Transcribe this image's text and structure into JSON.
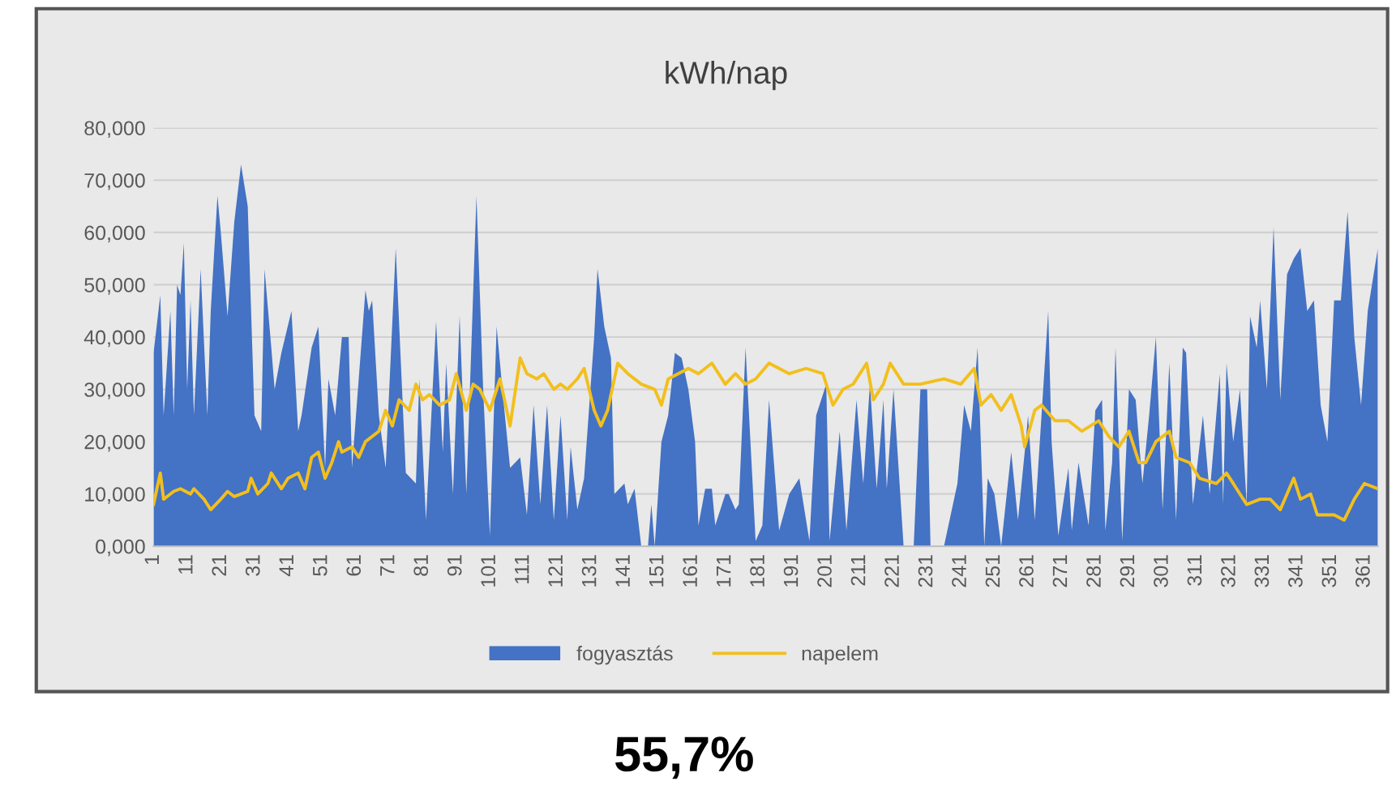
{
  "chart_data": {
    "type": "area",
    "title": "kWh/nap",
    "xlim": [
      1,
      365
    ],
    "xticks": [
      1,
      11,
      21,
      31,
      41,
      51,
      61,
      71,
      81,
      91,
      101,
      111,
      121,
      131,
      141,
      151,
      161,
      171,
      181,
      191,
      201,
      211,
      221,
      231,
      241,
      251,
      261,
      271,
      281,
      291,
      301,
      311,
      321,
      331,
      341,
      351,
      361
    ],
    "ylim": [
      0,
      80
    ],
    "yticks": [
      {
        "value": 0,
        "label": "0,000"
      },
      {
        "value": 10,
        "label": "10,000"
      },
      {
        "value": 20,
        "label": "20,000"
      },
      {
        "value": 30,
        "label": "30,000"
      },
      {
        "value": 40,
        "label": "40,000"
      },
      {
        "value": 50,
        "label": "50,000"
      },
      {
        "value": 60,
        "label": "60,000"
      },
      {
        "value": 70,
        "label": "70,000"
      },
      {
        "value": 80,
        "label": "80,000"
      }
    ],
    "grid": "y",
    "legend": "bottom",
    "annotations": [
      "55,7%"
    ],
    "series": [
      {
        "name": "fogyasztás",
        "color": "#4472c4",
        "x": [
          1,
          3,
          4,
          6,
          7,
          8,
          9,
          10,
          11,
          12,
          13,
          15,
          17,
          18,
          20,
          21,
          23,
          25,
          27,
          29,
          31,
          33,
          34,
          36,
          37,
          39,
          42,
          44,
          45,
          48,
          50,
          52,
          53,
          55,
          57,
          59,
          60,
          64,
          65,
          66,
          68,
          70,
          73,
          76,
          79,
          80,
          82,
          85,
          87,
          88,
          90,
          92,
          94,
          97,
          99,
          101,
          103,
          105,
          107,
          110,
          112,
          114,
          116,
          118,
          120,
          122,
          124,
          125,
          127,
          129,
          132,
          133,
          135,
          137,
          138,
          141,
          142,
          144,
          146,
          148,
          149,
          150,
          152,
          154,
          156,
          158,
          160,
          162,
          163,
          165,
          167,
          168,
          171,
          172,
          174,
          175,
          177,
          180,
          182,
          184,
          187,
          190,
          193,
          196,
          198,
          201,
          202,
          205,
          207,
          210,
          212,
          214,
          216,
          218,
          219,
          221,
          223,
          224,
          227,
          229,
          231,
          232,
          236,
          240,
          242,
          244,
          246,
          248,
          249,
          251,
          253,
          256,
          258,
          260,
          261,
          263,
          265,
          267,
          268,
          270,
          273,
          274,
          276,
          279,
          281,
          283,
          284,
          286,
          287,
          289,
          291,
          293,
          295,
          297,
          299,
          301,
          303,
          305,
          307,
          308,
          310,
          313,
          315,
          318,
          319,
          320,
          322,
          324,
          326,
          327,
          329,
          330,
          332,
          334,
          336,
          338,
          340,
          342,
          344,
          346,
          348,
          350,
          352,
          354,
          356,
          358,
          360,
          362,
          365
        ],
        "values": [
          37,
          48,
          25,
          45,
          25,
          50,
          48,
          58,
          30,
          47,
          25,
          53,
          25,
          45,
          67,
          60,
          44,
          62,
          73,
          65,
          25,
          22,
          53,
          38,
          30,
          37,
          45,
          22,
          25,
          38,
          42,
          15,
          32,
          25,
          40,
          40,
          15,
          49,
          45,
          47,
          25,
          15,
          57,
          14,
          12,
          32,
          5,
          43,
          18,
          35,
          10,
          44,
          10,
          67,
          30,
          2,
          42,
          28,
          15,
          17,
          6,
          27,
          8,
          27,
          5,
          25,
          5,
          19,
          7,
          13,
          40,
          53,
          42,
          36,
          10,
          12,
          8,
          11,
          0,
          0,
          8,
          0,
          20,
          25,
          37,
          36,
          30,
          20,
          4,
          11,
          11,
          4,
          10,
          10,
          7,
          8,
          38,
          1,
          4,
          28,
          3,
          10,
          13,
          1,
          25,
          31,
          1,
          22,
          3,
          28,
          12,
          31,
          11,
          28,
          11,
          30,
          10,
          0,
          0,
          30,
          30,
          0,
          0,
          12,
          27,
          22,
          38,
          0,
          13,
          10,
          0,
          18,
          5,
          18,
          25,
          5,
          25,
          45,
          20,
          2,
          15,
          3,
          16,
          4,
          26,
          28,
          3,
          16,
          38,
          1,
          30,
          28,
          12,
          25,
          40,
          7,
          35,
          5,
          38,
          37,
          8,
          25,
          10,
          33,
          8,
          35,
          20,
          30,
          8,
          44,
          38,
          47,
          30,
          61,
          28,
          52,
          55,
          57,
          45,
          47,
          27,
          20,
          47,
          47,
          64,
          40,
          27,
          45,
          57
        ]
      },
      {
        "name": "napelem",
        "type": "line",
        "color": "#f2bf1d",
        "x": [
          1,
          3,
          4,
          5,
          7,
          9,
          12,
          13,
          16,
          18,
          21,
          23,
          25,
          29,
          30,
          32,
          35,
          36,
          39,
          41,
          44,
          46,
          48,
          50,
          52,
          54,
          56,
          57,
          60,
          62,
          64,
          68,
          70,
          72,
          74,
          77,
          79,
          81,
          83,
          86,
          89,
          91,
          94,
          96,
          98,
          101,
          104,
          107,
          110,
          112,
          115,
          117,
          120,
          122,
          124,
          127,
          129,
          132,
          134,
          136,
          139,
          142,
          146,
          150,
          152,
          154,
          157,
          160,
          163,
          167,
          171,
          174,
          177,
          180,
          184,
          187,
          190,
          195,
          200,
          203,
          206,
          209,
          213,
          215,
          218,
          220,
          224,
          229,
          236,
          241,
          245,
          247,
          250,
          253,
          256,
          259,
          260,
          263,
          265,
          269,
          273,
          277,
          282,
          285,
          288,
          291,
          294,
          296,
          299,
          303,
          305,
          309,
          312,
          317,
          320,
          323,
          326,
          330,
          333,
          336,
          340,
          342,
          345,
          347,
          352,
          355,
          358,
          361,
          365
        ],
        "values": [
          8,
          14,
          9,
          9.5,
          10.5,
          11,
          10,
          11,
          9,
          7,
          9,
          10.5,
          9.5,
          10.5,
          13,
          10,
          12,
          14,
          11,
          13,
          14,
          11,
          17,
          18,
          13,
          16,
          20,
          18,
          19,
          17,
          20,
          22,
          26,
          23,
          28,
          26,
          31,
          28,
          29,
          27,
          28,
          33,
          26,
          31,
          30,
          26,
          32,
          23,
          36,
          33,
          32,
          33,
          30,
          31,
          30,
          32,
          34,
          26,
          23,
          26,
          35,
          33,
          31,
          30,
          27,
          32,
          33,
          34,
          33,
          35,
          31,
          33,
          31,
          32,
          35,
          34,
          33,
          34,
          33,
          27,
          30,
          31,
          35,
          28,
          31,
          35,
          31,
          31,
          32,
          31,
          34,
          27,
          29,
          26,
          29,
          23,
          19,
          26,
          27,
          24,
          24,
          22,
          24,
          21,
          19,
          22,
          16,
          16,
          20,
          22,
          17,
          16,
          13,
          12,
          14,
          11,
          8,
          9,
          9,
          7,
          13,
          9,
          10,
          6,
          6,
          5,
          9,
          12,
          11
        ]
      }
    ]
  }
}
